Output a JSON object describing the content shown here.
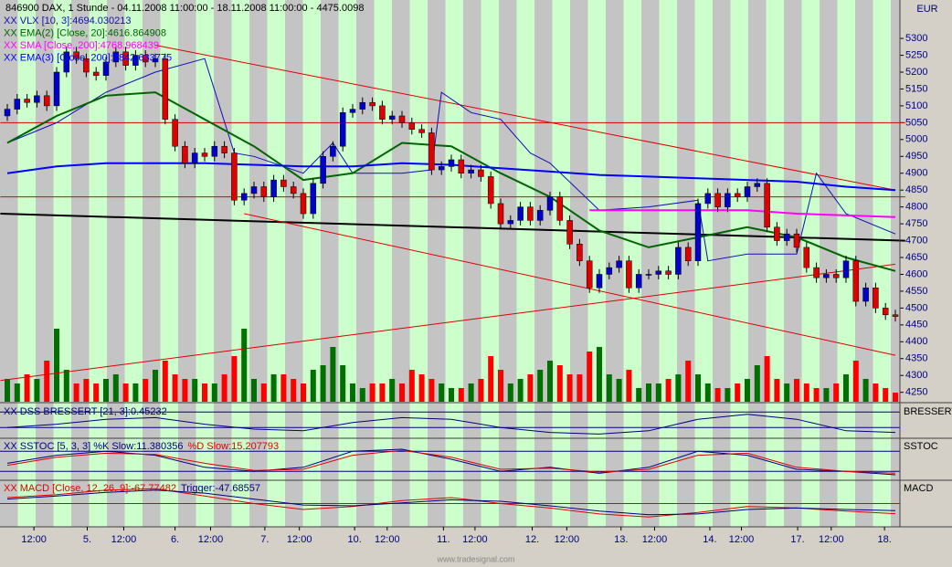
{
  "chart_data": {
    "type": "candlestick",
    "title": "846900  DAX, 1 Stunde - 04.11.2008 11:00:00 - 18.11.2008 11:00:00 - 4475.0098",
    "axis_label": "EUR",
    "watermark": "www.tradesignal.com",
    "ylim": [
      4222,
      5414
    ],
    "yticks": [
      4250,
      4300,
      4350,
      4400,
      4450,
      4500,
      4550,
      4600,
      4650,
      4700,
      4750,
      4800,
      4850,
      4900,
      4950,
      5000,
      5050,
      5100,
      5150,
      5200,
      5250,
      5300
    ],
    "up_color": "#0000cc",
    "down_color": "#e00000",
    "open": [
      5070,
      5090,
      5120,
      5110,
      5130,
      5100,
      5200,
      5260,
      5240,
      5200,
      5190,
      5230,
      5260,
      5220,
      5250,
      5230,
      5240,
      5060,
      4980,
      4930,
      4960,
      4950,
      4980,
      4960,
      4820,
      4840,
      4860,
      4830,
      4880,
      4860,
      4840,
      4780,
      4870,
      4950,
      4980,
      5080,
      5090,
      5110,
      5100,
      5060,
      5070,
      5050,
      5030,
      5020,
      4910,
      4920,
      4940,
      4900,
      4910,
      4890,
      4810,
      4750,
      4760,
      4800,
      4760,
      4790,
      4830,
      4760,
      4690,
      4640,
      4560,
      4600,
      4620,
      4640,
      4560,
      4600,
      4600,
      4610,
      4600,
      4680,
      4640,
      4810,
      4840,
      4800,
      4840,
      4830,
      4860,
      4870,
      4740,
      4700,
      4720,
      4680,
      4620,
      4590,
      4600,
      4590,
      4640,
      4520,
      4560,
      4500,
      4480
    ],
    "high": [
      5105,
      5135,
      5135,
      5145,
      5145,
      5215,
      5275,
      5275,
      5255,
      5215,
      5245,
      5275,
      5275,
      5265,
      5265,
      5255,
      5255,
      5075,
      4995,
      4975,
      4975,
      4995,
      4995,
      4975,
      4855,
      4875,
      4875,
      4895,
      4895,
      4875,
      4855,
      4885,
      4965,
      4995,
      5095,
      5105,
      5125,
      5125,
      5115,
      5085,
      5085,
      5065,
      5045,
      5035,
      4935,
      4955,
      4955,
      4925,
      4925,
      4905,
      4825,
      4775,
      4815,
      4815,
      4805,
      4845,
      4845,
      4775,
      4705,
      4655,
      4615,
      4635,
      4655,
      4655,
      4615,
      4615,
      4625,
      4625,
      4695,
      4695,
      4825,
      4855,
      4855,
      4855,
      4855,
      4875,
      4885,
      4885,
      4755,
      4735,
      4735,
      4695,
      4635,
      4615,
      4615,
      4655,
      4655,
      4575,
      4575,
      4515,
      4495
    ],
    "low": [
      5055,
      5075,
      5095,
      5095,
      5085,
      5085,
      5185,
      5225,
      5185,
      5175,
      5175,
      5215,
      5205,
      5205,
      5215,
      5215,
      5045,
      4965,
      4915,
      4915,
      4935,
      4935,
      4945,
      4805,
      4805,
      4825,
      4815,
      4815,
      4845,
      4825,
      4765,
      4765,
      4855,
      4935,
      4965,
      5065,
      5075,
      5085,
      5045,
      5045,
      5035,
      5015,
      5005,
      4895,
      4895,
      4905,
      4885,
      4885,
      4875,
      4795,
      4735,
      4735,
      4745,
      4745,
      4745,
      4775,
      4745,
      4675,
      4625,
      4545,
      4545,
      4585,
      4605,
      4545,
      4545,
      4585,
      4585,
      4585,
      4585,
      4625,
      4625,
      4795,
      4785,
      4785,
      4815,
      4815,
      4845,
      4725,
      4685,
      4685,
      4665,
      4605,
      4575,
      4575,
      4575,
      4575,
      4505,
      4505,
      4485,
      4465,
      4460
    ],
    "close": [
      5090,
      5120,
      5110,
      5130,
      5100,
      5200,
      5260,
      5240,
      5200,
      5190,
      5230,
      5260,
      5220,
      5250,
      5230,
      5240,
      5060,
      4980,
      4930,
      4960,
      4950,
      4980,
      4960,
      4820,
      4840,
      4860,
      4830,
      4880,
      4860,
      4840,
      4780,
      4870,
      4950,
      4980,
      5080,
      5090,
      5110,
      5100,
      5060,
      5070,
      5050,
      5030,
      5020,
      4910,
      4920,
      4940,
      4900,
      4910,
      4890,
      4810,
      4750,
      4760,
      4800,
      4760,
      4790,
      4830,
      4760,
      4690,
      4640,
      4560,
      4600,
      4620,
      4640,
      4560,
      4600,
      4600,
      4610,
      4600,
      4680,
      4640,
      4810,
      4840,
      4800,
      4840,
      4830,
      4860,
      4870,
      4740,
      4700,
      4720,
      4680,
      4620,
      4590,
      4600,
      4590,
      4640,
      4520,
      4560,
      4500,
      4480,
      4475.0098
    ],
    "volume": {
      "up_color": "#007000",
      "down_color": "#ff0000",
      "values": [
        25,
        20,
        30,
        25,
        45,
        80,
        35,
        20,
        25,
        20,
        25,
        30,
        20,
        20,
        25,
        35,
        45,
        30,
        25,
        25,
        20,
        20,
        30,
        50,
        80,
        25,
        20,
        30,
        30,
        25,
        20,
        35,
        40,
        60,
        40,
        20,
        15,
        20,
        20,
        25,
        20,
        35,
        30,
        25,
        20,
        15,
        15,
        20,
        25,
        50,
        35,
        20,
        25,
        30,
        35,
        45,
        40,
        30,
        30,
        55,
        60,
        30,
        25,
        35,
        15,
        20,
        20,
        25,
        30,
        45,
        30,
        20,
        15,
        15,
        20,
        25,
        40,
        50,
        25,
        20,
        25,
        20,
        15,
        15,
        20,
        30,
        45,
        25,
        20,
        15,
        10
      ]
    },
    "overlays": [
      {
        "name": "XX VLX [10, 3]:4694.030213",
        "color": "#1010b0",
        "width": 1,
        "x": [
          0,
          5,
          10,
          15,
          20,
          23,
          25,
          30,
          33,
          35,
          40,
          43,
          44,
          47,
          50,
          53,
          55,
          60,
          65,
          70,
          71,
          75,
          80,
          82,
          85,
          90
        ],
        "values": [
          4990,
          5050,
          5140,
          5200,
          5240,
          4960,
          4950,
          4900,
          4990,
          4900,
          4900,
          4910,
          5140,
          5080,
          5060,
          4960,
          4930,
          4790,
          4800,
          4820,
          4640,
          4660,
          4660,
          4900,
          4780,
          4720
        ]
      },
      {
        "name": "XX EMA(2) [Close, 20]:4616.864908",
        "color": "#006400",
        "width": 2,
        "x": [
          0,
          5,
          10,
          15,
          20,
          25,
          30,
          35,
          40,
          45,
          50,
          55,
          60,
          65,
          70,
          75,
          80,
          85,
          90
        ],
        "values": [
          4990,
          5070,
          5130,
          5140,
          5060,
          4980,
          4880,
          4900,
          4990,
          4980,
          4900,
          4830,
          4730,
          4680,
          4710,
          4740,
          4710,
          4650,
          4610
        ]
      },
      {
        "name": "XX SMA [Close, 200]:4768.968439",
        "color": "#ff00ff",
        "width": 2,
        "x": [
          59,
          65,
          70,
          75,
          80,
          85,
          90
        ],
        "values": [
          4790,
          4790,
          4790,
          4790,
          4780,
          4775,
          4770
        ]
      },
      {
        "name": "XX EMA(3) [Close, 200]:4842.633775",
        "color": "#0000ff",
        "width": 2,
        "x": [
          0,
          5,
          10,
          15,
          20,
          25,
          30,
          35,
          40,
          45,
          50,
          55,
          60,
          65,
          70,
          75,
          80,
          85,
          90
        ],
        "values": [
          4900,
          4920,
          4930,
          4930,
          4930,
          4925,
          4920,
          4920,
          4930,
          4925,
          4915,
          4905,
          4895,
          4890,
          4885,
          4880,
          4875,
          4860,
          4850
        ]
      }
    ],
    "drawings": [
      {
        "color": "#000000",
        "width": 2,
        "x": [
          -0.7,
          91
        ],
        "values": [
          4780,
          4700
        ]
      },
      {
        "color": "#e00000",
        "width": 1,
        "x": [
          -0.7,
          91
        ],
        "values": [
          5050,
          5050
        ]
      },
      {
        "color": "#e00000",
        "width": 1,
        "x": [
          -0.7,
          91
        ],
        "values": [
          4830,
          4830
        ]
      },
      {
        "color": "#e00000",
        "width": 1,
        "x": [
          15,
          90
        ],
        "values": [
          5280,
          4850
        ]
      },
      {
        "color": "#e00000",
        "width": 1,
        "x": [
          24,
          90
        ],
        "values": [
          4780,
          4360
        ]
      },
      {
        "color": "#e00000",
        "width": 1,
        "x": [
          -0.7,
          90
        ],
        "values": [
          4285,
          4630
        ]
      }
    ],
    "panels": [
      {
        "label": "BRESSERT",
        "ylim": [
          0,
          100
        ],
        "levels": [
          30,
          77
        ],
        "legend": [
          {
            "text": "XX DSS BRESSERT [21, 3]:0.45232",
            "color": "#000080"
          }
        ],
        "series": [
          {
            "color": "#000080",
            "x": [
              0,
              5,
              10,
              15,
              20,
              25,
              30,
              35,
              40,
              45,
              50,
              55,
              60,
              65,
              70,
              75,
              80,
              85,
              90
            ],
            "values": [
              30,
              40,
              55,
              60,
              40,
              25,
              20,
              45,
              60,
              55,
              30,
              15,
              10,
              20,
              55,
              70,
              55,
              20,
              15
            ]
          }
        ]
      },
      {
        "label": "SSTOC",
        "ylim": [
          0,
          100
        ],
        "levels": [
          20,
          70
        ],
        "legend": [
          {
            "text": "XX SSTOC [5, 3, 3] %K Slow:11.380356",
            "color": "#000080"
          },
          {
            "text": "%D Slow:15.207793",
            "color": "#e00000"
          }
        ],
        "series": [
          {
            "color": "#000080",
            "x": [
              0,
              5,
              10,
              15,
              20,
              25,
              30,
              35,
              40,
              45,
              50,
              55,
              60,
              65,
              70,
              75,
              80,
              85,
              90
            ],
            "values": [
              40,
              60,
              70,
              60,
              30,
              20,
              30,
              70,
              75,
              50,
              20,
              30,
              15,
              30,
              70,
              60,
              25,
              20,
              11.38
            ]
          },
          {
            "color": "#e00000",
            "x": [
              0,
              5,
              10,
              15,
              20,
              25,
              30,
              35,
              40,
              45,
              50,
              55,
              60,
              65,
              70,
              75,
              80,
              85,
              90
            ],
            "values": [
              35,
              55,
              65,
              62,
              40,
              22,
              25,
              60,
              72,
              55,
              25,
              28,
              18,
              25,
              60,
              65,
              30,
              20,
              15.21
            ]
          }
        ]
      },
      {
        "label": "MACD",
        "ylim": [
          -150,
          150
        ],
        "levels": [
          0
        ],
        "legend": [
          {
            "text": "XX MACD [Close, 12, 26, 9]:-67.77482",
            "color": "#e00000"
          },
          {
            "text": "Trigger:-47.68557",
            "color": "#000080"
          }
        ],
        "series": [
          {
            "color": "#e00000",
            "x": [
              0,
              5,
              10,
              15,
              20,
              25,
              30,
              35,
              40,
              45,
              50,
              55,
              60,
              65,
              70,
              75,
              80,
              85,
              90
            ],
            "values": [
              40,
              60,
              90,
              100,
              50,
              0,
              -40,
              -20,
              20,
              40,
              0,
              -30,
              -70,
              -90,
              -60,
              -20,
              -30,
              -50,
              -67.77
            ]
          },
          {
            "color": "#000080",
            "x": [
              0,
              5,
              10,
              15,
              20,
              25,
              30,
              35,
              40,
              45,
              50,
              55,
              60,
              65,
              70,
              75,
              80,
              85,
              90
            ],
            "values": [
              30,
              50,
              75,
              90,
              70,
              30,
              -10,
              -15,
              5,
              25,
              15,
              -15,
              -50,
              -75,
              -70,
              -40,
              -30,
              -40,
              -47.69
            ]
          }
        ]
      }
    ],
    "x_labels": [
      {
        "index": 2.7,
        "label": "12:00"
      },
      {
        "index": 8.1,
        "label": "5."
      },
      {
        "index": 11.8,
        "label": "12:00"
      },
      {
        "index": 17,
        "label": "6."
      },
      {
        "index": 20.6,
        "label": "12:00"
      },
      {
        "index": 26.1,
        "label": "7."
      },
      {
        "index": 29.6,
        "label": "12:00"
      },
      {
        "index": 35.2,
        "label": "10."
      },
      {
        "index": 38.5,
        "label": "12:00"
      },
      {
        "index": 44.2,
        "label": "11."
      },
      {
        "index": 47.4,
        "label": "12:00"
      },
      {
        "index": 53.2,
        "label": "12."
      },
      {
        "index": 56.7,
        "label": "12:00"
      },
      {
        "index": 62.2,
        "label": "13."
      },
      {
        "index": 65.6,
        "label": "12:00"
      },
      {
        "index": 71.2,
        "label": "14."
      },
      {
        "index": 74.4,
        "label": "12:00"
      },
      {
        "index": 80.1,
        "label": "17."
      },
      {
        "index": 83.5,
        "label": "12:00"
      },
      {
        "index": 88.9,
        "label": "18."
      }
    ]
  }
}
